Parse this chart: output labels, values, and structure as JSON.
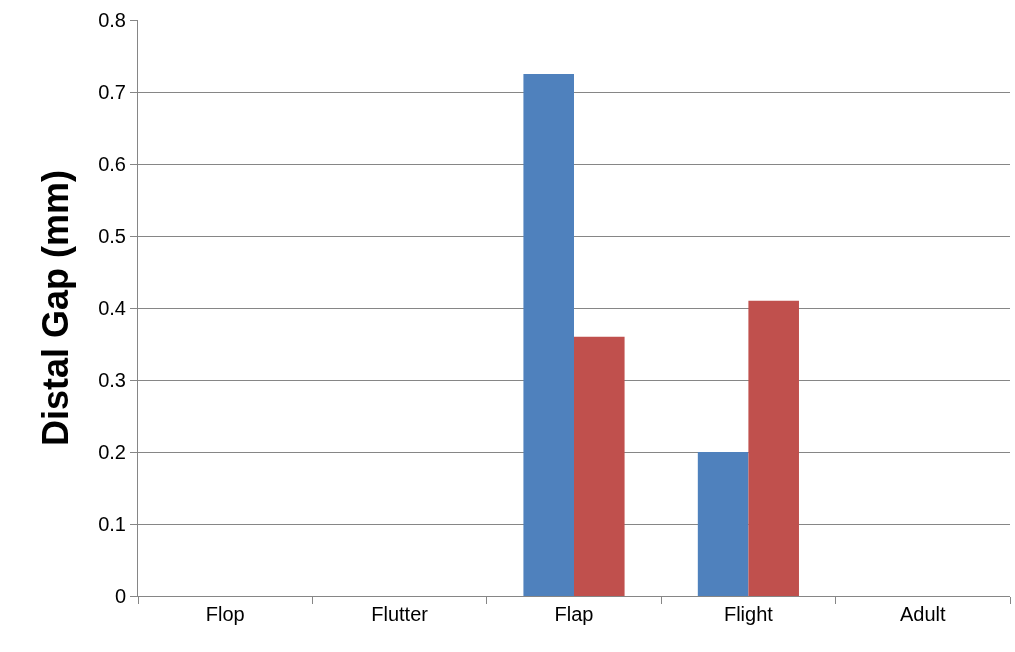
{
  "chart_data": {
    "type": "bar",
    "ylabel": "Distal Gap (mm)",
    "categories": [
      "Flop",
      "Flutter",
      "Flap",
      "Flight",
      "Adult"
    ],
    "series": [
      {
        "color": "#4f81bd",
        "values": [
          null,
          null,
          0.725,
          0.2,
          null
        ]
      },
      {
        "color": "#c0504d",
        "values": [
          null,
          null,
          0.36,
          0.41,
          null
        ]
      }
    ],
    "ylim": [
      0,
      0.8
    ],
    "yticks": [
      0,
      0.1,
      0.2,
      0.3,
      0.4,
      0.5,
      0.6,
      0.7,
      0.8
    ],
    "grid": "y"
  }
}
